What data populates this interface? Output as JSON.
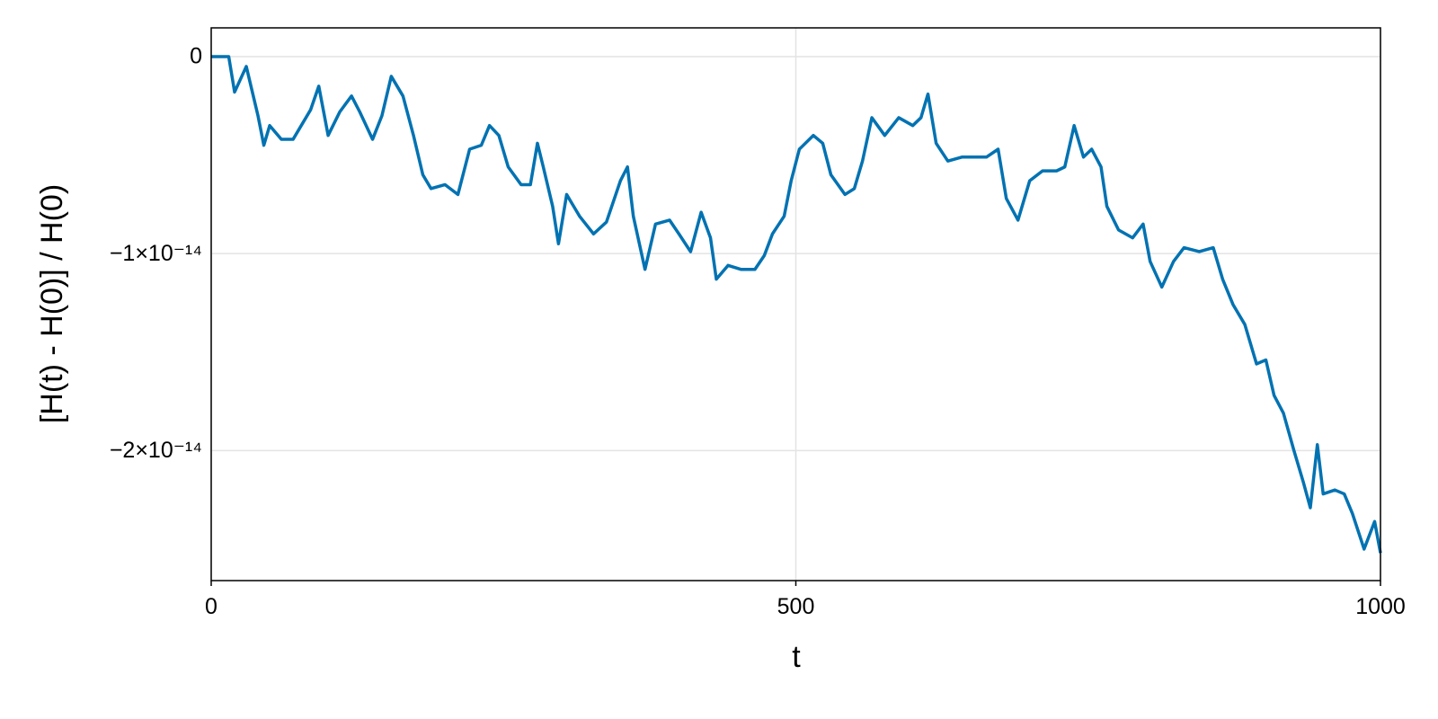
{
  "chart_data": {
    "type": "line",
    "x_label": "t",
    "y_label": "[H(t) - H(0)] / H(0)",
    "xlim": [
      0,
      1000
    ],
    "xticks": [
      0,
      500,
      1000
    ],
    "ylim": [
      -2.66e-14,
      1.46e-15
    ],
    "yticks": [
      {
        "value": 0,
        "label": "0"
      },
      {
        "value": -1e-14,
        "label": "−1×10⁻¹⁴"
      },
      {
        "value": -2e-14,
        "label": "−2×10⁻¹⁴"
      }
    ],
    "grid": true,
    "x": [
      0,
      15,
      20,
      30,
      40,
      45,
      50,
      60,
      70,
      85,
      92,
      100,
      110,
      120,
      127,
      138,
      146,
      154,
      164,
      173,
      181,
      188,
      200,
      211,
      221,
      231,
      238,
      246,
      254,
      265,
      273,
      279,
      284,
      292,
      297,
      304,
      315,
      327,
      338,
      350,
      356,
      361,
      371,
      380,
      392,
      400,
      410,
      419,
      427,
      432,
      442,
      453,
      465,
      473,
      480,
      490,
      496,
      503,
      515,
      523,
      530,
      542,
      550,
      557,
      565,
      576,
      588,
      600,
      607,
      613,
      620,
      630,
      642,
      653,
      663,
      673,
      680,
      690,
      700,
      711,
      723,
      730,
      738,
      746,
      753,
      761,
      766,
      776,
      788,
      797,
      803,
      813,
      823,
      832,
      845,
      857,
      865,
      874,
      884,
      894,
      902,
      909,
      917,
      926,
      934,
      940,
      946,
      951,
      961,
      969,
      976,
      986,
      995,
      1000
    ],
    "series": [
      {
        "name": "[H(t) - H(0)] / H(0)",
        "color": "#0072b2",
        "values": [
          0,
          0,
          -1.8e-15,
          -5e-16,
          -3e-15,
          -4.5e-15,
          -3.5e-15,
          -4.2e-15,
          -4.2e-15,
          -2.7e-15,
          -1.5e-15,
          -4e-15,
          -2.8e-15,
          -2e-15,
          -2.8e-15,
          -4.2e-15,
          -3e-15,
          -1e-15,
          -2e-15,
          -4e-15,
          -6e-15,
          -6.7e-15,
          -6.5e-15,
          -7e-15,
          -4.7e-15,
          -4.5e-15,
          -3.5e-15,
          -4e-15,
          -5.6e-15,
          -6.5e-15,
          -6.5e-15,
          -4.4e-15,
          -5.6e-15,
          -7.6e-15,
          -9.5e-15,
          -7e-15,
          -8.1e-15,
          -9e-15,
          -8.4e-15,
          -6.3e-15,
          -5.6e-15,
          -8.1e-15,
          -1.08e-14,
          -8.5e-15,
          -8.3e-15,
          -9e-15,
          -9.9e-15,
          -7.9e-15,
          -9.2e-15,
          -1.13e-14,
          -1.06e-14,
          -1.08e-14,
          -1.08e-14,
          -1.01e-14,
          -9e-15,
          -8.1e-15,
          -6.3e-15,
          -4.7e-15,
          -4e-15,
          -4.4e-15,
          -6e-15,
          -7e-15,
          -6.7e-15,
          -5.3e-15,
          -3.1e-15,
          -4e-15,
          -3.1e-15,
          -3.5e-15,
          -3.1e-15,
          -1.9e-15,
          -4.4e-15,
          -5.3e-15,
          -5.1e-15,
          -5.1e-15,
          -5.1e-15,
          -4.7e-15,
          -7.2e-15,
          -8.3e-15,
          -6.3e-15,
          -5.8e-15,
          -5.8e-15,
          -5.6e-15,
          -3.5e-15,
          -5.1e-15,
          -4.7e-15,
          -5.6e-15,
          -7.6e-15,
          -8.8e-15,
          -9.2e-15,
          -8.5e-15,
          -1.04e-14,
          -1.17e-14,
          -1.04e-14,
          -9.7e-15,
          -9.9e-15,
          -9.7e-15,
          -1.13e-14,
          -1.26e-14,
          -1.36e-14,
          -1.56e-14,
          -1.54e-14,
          -1.72e-14,
          -1.81e-14,
          -2e-14,
          -2.16e-14,
          -2.29e-14,
          -1.97e-14,
          -2.22e-14,
          -2.2e-14,
          -2.22e-14,
          -2.32e-14,
          -2.5e-14,
          -2.36e-14,
          -2.52e-14
        ]
      }
    ]
  }
}
